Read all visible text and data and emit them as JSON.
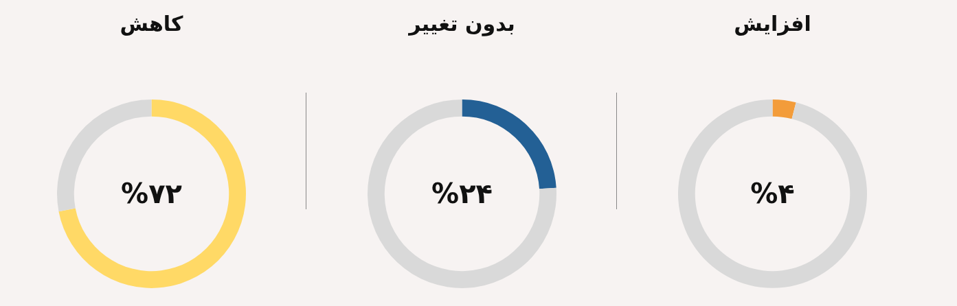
{
  "chart_data": [
    {
      "type": "donut",
      "title": "افزایش",
      "categories": [
        null,
        null
      ],
      "values": [
        4,
        96
      ],
      "colors": [
        "#f39c3a",
        "#d9d9d9"
      ],
      "value_labels": [
        "%۴",
        null
      ]
    },
    {
      "type": "donut",
      "title": "بدون تغییر",
      "categories": [
        null,
        null
      ],
      "values": [
        24,
        76
      ],
      "colors": [
        "#236095",
        "#d9d9d9"
      ],
      "value_labels": [
        "%۲۴",
        null
      ]
    },
    {
      "type": "donut",
      "title": "کاهش",
      "categories": [
        null,
        null
      ],
      "values": [
        72,
        28
      ],
      "colors": [
        "#ffd966",
        "#d9d9d9"
      ],
      "value_labels": [
        "%۷۲",
        null
      ]
    }
  ]
}
